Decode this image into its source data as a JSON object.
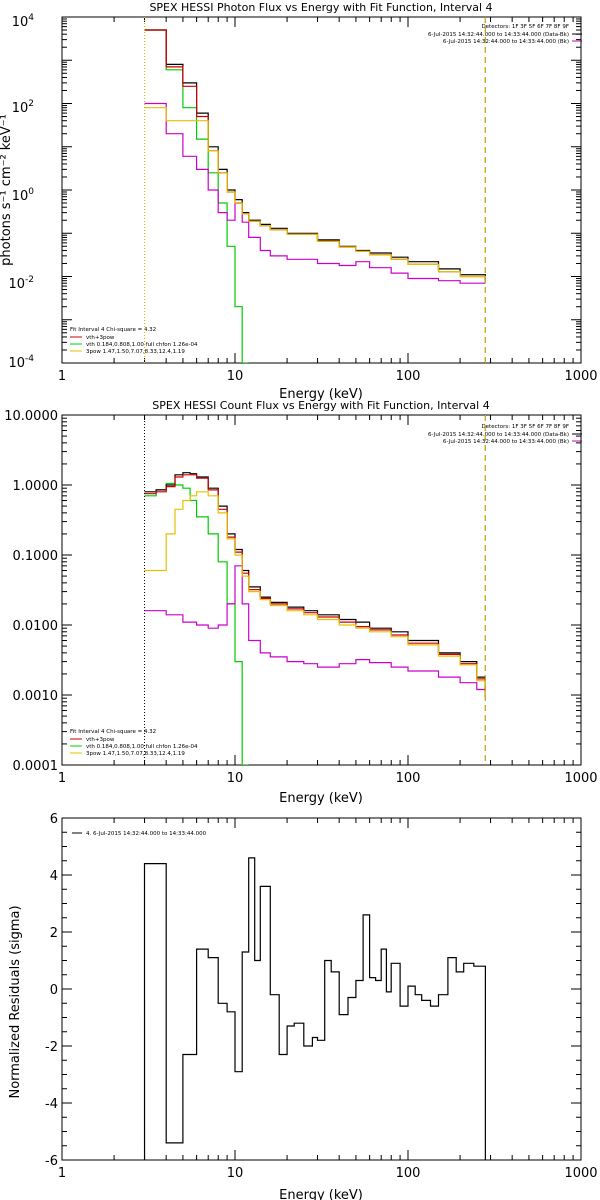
{
  "chart_data": [
    {
      "type": "line",
      "title": "SPEX HESSI Photon Flux vs Energy with Fit Function, Interval 4",
      "xlabel": "Energy (keV)",
      "ylabel": "photons s⁻¹ cm⁻² keV⁻¹",
      "xscale": "log",
      "yscale": "log",
      "xlim": [
        1,
        1000
      ],
      "ylim": [
        0.0001,
        10000
      ],
      "x_ticks": [
        "1",
        "10",
        "100",
        "1000"
      ],
      "y_ticks": [
        {
          "mantissa": "10",
          "exp": "-4"
        },
        {
          "mantissa": "10",
          "exp": "-2"
        },
        {
          "mantissa": "10",
          "exp": "0"
        },
        {
          "mantissa": "10",
          "exp": "2"
        },
        {
          "mantissa": "10",
          "exp": "4"
        }
      ],
      "legend_top_right": {
        "header": "Detectors: 1F 3F 5F 6F 7F 8F 9F",
        "entries": [
          {
            "label": "6-Jul-2015 14:32:44.000 to 14:33:44.000 (Data-Bk)",
            "color": "#000000"
          },
          {
            "label": "6-Jul-2015 14:32:44.000 to 14:33:44.000 (Bk)",
            "color": "#cc00cc"
          }
        ]
      },
      "legend_bottom_left": {
        "header": "Fit Interval  4    Chi-square = 4.32",
        "entries": [
          {
            "label": "vth+3pow",
            "color": "#cc0000"
          },
          {
            "label": "vth 0.184,0.808,1.00  full chfon 1.26e-04",
            "color": "#00cc00"
          },
          {
            "label": "3pow 1.47,1.50,7.07,8.33,12.4,1.19",
            "color": "#e6c000"
          }
        ]
      },
      "vlines": [
        {
          "x": 3.0,
          "style": "dotted",
          "color": "#000000"
        },
        {
          "x": 3.0,
          "style": "dotted",
          "color": "#e6c000"
        },
        {
          "x": 280,
          "style": "dashed",
          "color": "#000000"
        },
        {
          "x": 280,
          "style": "dashed",
          "color": "#e6c000"
        }
      ],
      "series": [
        {
          "color": "#00cc00",
          "x": [
            3,
            3.5,
            4,
            5,
            6,
            7,
            8,
            9,
            10,
            11,
            12
          ],
          "y": [
            5000,
            5000,
            600,
            80,
            15,
            2.5,
            0.5,
            0.05,
            0.002,
            0.0001,
            1e-05
          ]
        },
        {
          "color": "#cc00cc",
          "x": [
            3,
            3.5,
            4,
            5,
            6,
            7,
            8,
            9,
            10,
            11,
            12,
            14,
            16,
            20,
            30,
            40,
            50,
            60,
            80,
            100,
            150,
            200,
            280
          ],
          "y": [
            100,
            100,
            20,
            6,
            3,
            1,
            0.3,
            0.2,
            0.5,
            0.18,
            0.08,
            0.04,
            0.03,
            0.025,
            0.02,
            0.018,
            0.022,
            0.016,
            0.012,
            0.009,
            0.008,
            0.007,
            0.007
          ]
        },
        {
          "color": "#000000",
          "x": [
            3,
            3.5,
            4,
            5,
            6,
            7,
            8,
            9,
            10,
            11,
            12,
            14,
            16,
            20,
            30,
            40,
            50,
            60,
            80,
            100,
            150,
            200,
            280
          ],
          "y": [
            5000,
            5000,
            800,
            300,
            60,
            10,
            3,
            1,
            0.6,
            0.3,
            0.2,
            0.16,
            0.13,
            0.1,
            0.07,
            0.05,
            0.04,
            0.035,
            0.028,
            0.022,
            0.015,
            0.011,
            0.008
          ]
        },
        {
          "color": "#cc0000",
          "x": [
            3,
            3.5,
            4,
            5,
            6,
            7,
            8,
            9,
            10,
            11,
            12,
            14,
            16,
            20,
            30,
            40,
            50,
            60,
            80,
            100,
            150,
            200,
            280
          ],
          "y": [
            5000,
            5000,
            700,
            250,
            50,
            8,
            2.5,
            0.9,
            0.5,
            0.28,
            0.19,
            0.15,
            0.12,
            0.095,
            0.065,
            0.048,
            0.038,
            0.032,
            0.025,
            0.019,
            0.013,
            0.01,
            0.0075
          ]
        },
        {
          "color": "#e6c000",
          "x": [
            3,
            3.5,
            4,
            5,
            6,
            7,
            8,
            9,
            10,
            11,
            12,
            14,
            16,
            20,
            30,
            40,
            50,
            60,
            80,
            100,
            150,
            200,
            280
          ],
          "y": [
            80,
            80,
            40,
            40,
            40,
            8,
            2.5,
            0.9,
            0.5,
            0.28,
            0.19,
            0.15,
            0.12,
            0.095,
            0.065,
            0.048,
            0.038,
            0.032,
            0.025,
            0.019,
            0.013,
            0.01,
            0.0075
          ]
        }
      ]
    },
    {
      "type": "line",
      "title": "SPEX HESSI Count Flux vs Energy with Fit Function, Interval 4",
      "xlabel": "Energy (keV)",
      "xscale": "log",
      "yscale": "log",
      "xlim": [
        1,
        1000
      ],
      "ylim": [
        0.0001,
        10
      ],
      "x_ticks": [
        "1",
        "10",
        "100",
        "1000"
      ],
      "y_ticks": [
        "0.0001",
        "0.0010",
        "0.0100",
        "0.1000",
        "1.0000",
        "10.0000"
      ],
      "legend_top_right": {
        "header": "Detectors: 1F 3F 5F 6F 7F 8F 9F",
        "entries": [
          {
            "label": "6-Jul-2015 14:32:44.000 to 14:33:44.000 (Data-Bk)",
            "color": "#000000"
          },
          {
            "label": "6-Jul-2015 14:32:44.000 to 14:33:44.000 (Bk)",
            "color": "#cc00cc"
          }
        ]
      },
      "legend_bottom_left": {
        "header": "Fit Interval  4    Chi-square = 4.32",
        "entries": [
          {
            "label": "vth+3pow",
            "color": "#cc0000"
          },
          {
            "label": "vth 0.184,0.808,1.00  full chfon 1.26e-04",
            "color": "#00cc00"
          },
          {
            "label": "3pow 1.47,1.50,7.07,8.33,12.4,1.19",
            "color": "#e6c000"
          }
        ]
      },
      "vlines": [
        {
          "x": 3.0,
          "style": "dotted",
          "color": "#000000"
        },
        {
          "x": 280,
          "style": "dashed",
          "color": "#000000"
        },
        {
          "x": 280,
          "style": "dashed",
          "color": "#e6c000"
        }
      ],
      "series": [
        {
          "color": "#00cc00",
          "x": [
            3,
            3.5,
            4,
            4.5,
            5,
            5.5,
            6,
            7,
            8,
            9,
            10,
            11,
            12
          ],
          "y": [
            0.7,
            0.85,
            1.05,
            1.0,
            0.9,
            0.6,
            0.35,
            0.2,
            0.08,
            0.02,
            0.003,
            0.0001,
            1e-05
          ]
        },
        {
          "color": "#cc00cc",
          "x": [
            3,
            4,
            5,
            6,
            7,
            8,
            9,
            10,
            11,
            12,
            14,
            16,
            20,
            25,
            30,
            40,
            50,
            60,
            80,
            100,
            150,
            200,
            250,
            280
          ],
          "y": [
            0.016,
            0.014,
            0.011,
            0.01,
            0.009,
            0.01,
            0.02,
            0.07,
            0.02,
            0.006,
            0.004,
            0.0035,
            0.003,
            0.0028,
            0.0025,
            0.0028,
            0.0032,
            0.0029,
            0.0025,
            0.0022,
            0.0018,
            0.0015,
            0.0012,
            0.0009
          ]
        },
        {
          "color": "#000000",
          "x": [
            3,
            3.5,
            4,
            4.5,
            5,
            5.5,
            6,
            7,
            8,
            9,
            10,
            11,
            12,
            14,
            16,
            20,
            25,
            30,
            40,
            50,
            60,
            80,
            100,
            150,
            200,
            250,
            280
          ],
          "y": [
            0.8,
            0.85,
            1.0,
            1.4,
            1.5,
            1.45,
            1.3,
            0.9,
            0.5,
            0.2,
            0.12,
            0.06,
            0.035,
            0.025,
            0.021,
            0.018,
            0.016,
            0.014,
            0.012,
            0.011,
            0.009,
            0.008,
            0.006,
            0.004,
            0.003,
            0.0018,
            0.001
          ]
        },
        {
          "color": "#cc0000",
          "x": [
            3,
            3.5,
            4,
            4.5,
            5,
            5.5,
            6,
            7,
            8,
            9,
            10,
            11,
            12,
            14,
            16,
            20,
            25,
            30,
            40,
            50,
            60,
            80,
            100,
            150,
            200,
            250,
            280
          ],
          "y": [
            0.75,
            0.8,
            0.95,
            1.3,
            1.4,
            1.4,
            1.25,
            0.85,
            0.45,
            0.18,
            0.11,
            0.055,
            0.032,
            0.024,
            0.02,
            0.017,
            0.015,
            0.013,
            0.011,
            0.0095,
            0.0085,
            0.0072,
            0.0055,
            0.0038,
            0.0028,
            0.0017,
            0.001
          ]
        },
        {
          "color": "#e6c000",
          "x": [
            3,
            3.5,
            4,
            4.5,
            5,
            5.5,
            6,
            7,
            8,
            9,
            10,
            11,
            12,
            14,
            16,
            20,
            25,
            30,
            40,
            50,
            60,
            80,
            100,
            150,
            200,
            250,
            280
          ],
          "y": [
            0.06,
            0.06,
            0.2,
            0.45,
            0.6,
            0.7,
            0.8,
            0.7,
            0.4,
            0.17,
            0.1,
            0.05,
            0.03,
            0.023,
            0.019,
            0.016,
            0.014,
            0.012,
            0.01,
            0.009,
            0.008,
            0.0068,
            0.0052,
            0.0036,
            0.0027,
            0.0016,
            0.0009
          ]
        }
      ]
    },
    {
      "type": "line",
      "title": "",
      "xlabel": "Energy (keV)",
      "ylabel": "Normalized Residuals (sigma)",
      "xscale": "log",
      "yscale": "linear",
      "xlim": [
        1,
        1000
      ],
      "ylim": [
        -6,
        6
      ],
      "x_ticks": [
        "1",
        "10",
        "100",
        "1000"
      ],
      "y_ticks": [
        "-6",
        "-4",
        "-2",
        "0",
        "2",
        "4",
        "6"
      ],
      "legend": {
        "label": "4.  6-Jul-2015 14:32:44.000 to 14:33:44.000",
        "color": "#000000"
      },
      "series": [
        {
          "color": "#000000",
          "x": [
            3,
            4,
            5,
            6,
            7,
            8,
            9,
            10,
            11,
            12,
            13,
            14,
            16,
            18,
            20,
            22,
            25,
            28,
            30,
            33,
            36,
            40,
            45,
            50,
            55,
            60,
            65,
            70,
            75,
            80,
            90,
            100,
            110,
            120,
            135,
            150,
            170,
            190,
            210,
            240,
            280
          ],
          "y": [
            4.4,
            -5.4,
            -2.3,
            1.4,
            1.1,
            -0.5,
            -0.8,
            -2.9,
            1.3,
            4.6,
            1.0,
            3.6,
            -0.2,
            -2.3,
            -1.3,
            -1.2,
            -2.0,
            -1.7,
            -1.8,
            1.0,
            0.6,
            -0.9,
            -0.3,
            0.3,
            2.6,
            0.4,
            0.3,
            1.4,
            -0.1,
            0.9,
            -0.6,
            0.1,
            -0.2,
            -0.4,
            -0.6,
            -0.2,
            1.1,
            0.6,
            0.9,
            0.8,
            0.8
          ]
        }
      ]
    }
  ]
}
